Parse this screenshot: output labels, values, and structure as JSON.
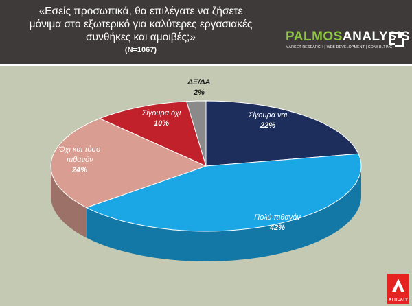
{
  "header": {
    "title_line1": "«Εσείς προσωπικά, θα επιλέγατε να ζήσετε",
    "title_line2": "μόνιμα στο εξωτερικό για καλύτερες εργασιακές",
    "title_line3": "συνθήκες και αμοιβές;»",
    "sample": "(N=1067)"
  },
  "logo": {
    "part1": "PALMOS",
    "part2": "ANALYSIS",
    "tagline": "MARKET RESEARCH | WEB DEVELOPMENT | CONSULTING"
  },
  "brand": {
    "name": "ATTICATV"
  },
  "chart_data": {
    "type": "pie",
    "style": "3d",
    "slices": [
      {
        "label": "Σίγουρα ναι",
        "value": 22,
        "value_label": "22%",
        "color": "#1d2e5c"
      },
      {
        "label": "Πολύ πιθανόν",
        "value": 42,
        "value_label": "42%",
        "color": "#1ba7e6"
      },
      {
        "label": "Όχι και τόσο πιθανόν",
        "label_lines": [
          "Όχι και τόσο",
          "πιθανόν"
        ],
        "value": 24,
        "value_label": "24%",
        "color": "#d99e91"
      },
      {
        "label": "Σίγουρα όχι",
        "value": 10,
        "value_label": "10%",
        "color": "#c0212b"
      },
      {
        "label": "ΔΞ/ΔΑ",
        "value": 2,
        "value_label": "2%",
        "color": "#8a8a8a"
      }
    ],
    "legend": "none"
  }
}
